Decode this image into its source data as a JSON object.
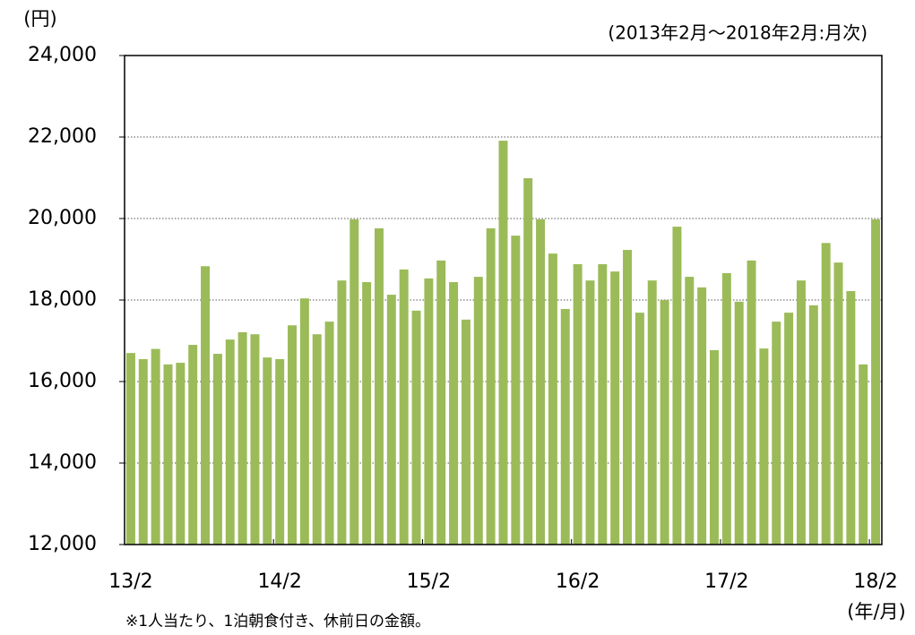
{
  "chart_data": {
    "type": "bar",
    "subtitle": "(2013年2月～2018年2月:月次)",
    "y_label": "(円)",
    "x_label": "(年/月)",
    "note": "※1人当たり、1泊朝食付き、休前日の金額。",
    "categories": [
      "13/2",
      null,
      null,
      null,
      null,
      null,
      null,
      null,
      null,
      null,
      null,
      null,
      "14/2",
      null,
      null,
      null,
      null,
      null,
      null,
      null,
      null,
      null,
      null,
      null,
      "15/2",
      null,
      null,
      null,
      null,
      null,
      null,
      null,
      null,
      null,
      null,
      null,
      "16/2",
      null,
      null,
      null,
      null,
      null,
      null,
      null,
      null,
      null,
      null,
      null,
      "17/2",
      null,
      null,
      null,
      null,
      null,
      null,
      null,
      null,
      null,
      null,
      null,
      "18/2"
    ],
    "values": [
      16700,
      16550,
      16800,
      16420,
      16460,
      16900,
      18830,
      16680,
      17030,
      17210,
      17160,
      16590,
      16550,
      17380,
      18040,
      17160,
      17470,
      18480,
      19980,
      18440,
      19760,
      18130,
      18750,
      17740,
      18530,
      18970,
      18440,
      17520,
      18570,
      19760,
      21910,
      19580,
      20990,
      19980,
      19140,
      17780,
      18880,
      18480,
      18880,
      18700,
      19230,
      17690,
      18480,
      18000,
      19800,
      18570,
      18310,
      16770,
      18660,
      17960,
      18970,
      16810,
      17470,
      17690,
      18480,
      17870,
      19400,
      18920,
      18220,
      16420,
      19980
    ],
    "color": "#9bbb59",
    "ylim": [
      12000,
      24000
    ],
    "yticks": [
      {
        "value": 12000,
        "label": "12,000"
      },
      {
        "value": 14000,
        "label": "14,000"
      },
      {
        "value": 16000,
        "label": "16,000"
      },
      {
        "value": 18000,
        "label": "18,000"
      },
      {
        "value": 20000,
        "label": "20,000"
      },
      {
        "value": 22000,
        "label": "22,000"
      },
      {
        "value": 24000,
        "label": "24,000"
      }
    ],
    "grid": true
  }
}
